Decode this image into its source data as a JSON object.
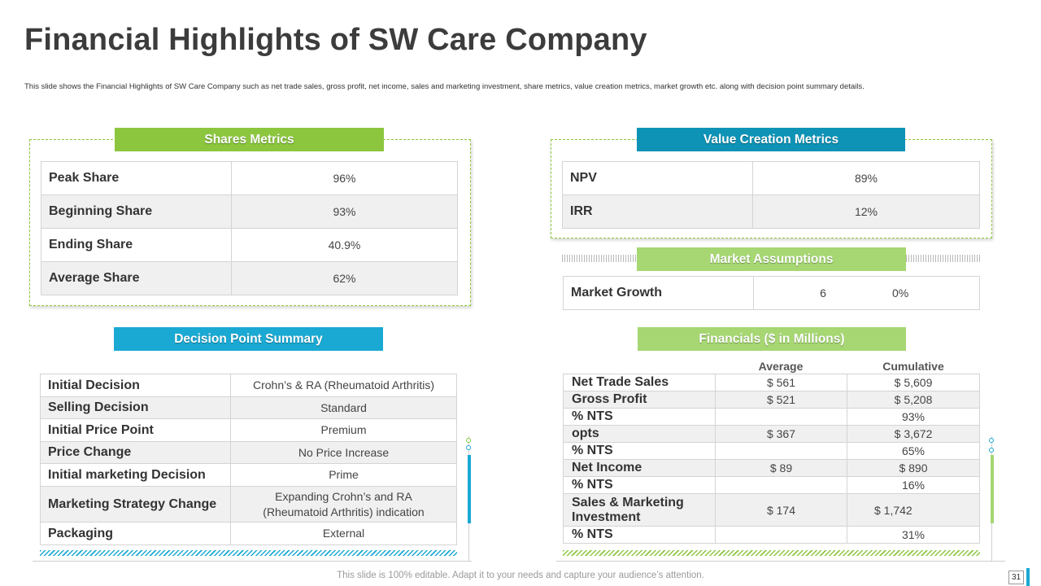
{
  "page": {
    "title": "Financial Highlights of SW Care Company",
    "subtitle": "This slide shows the Financial Highlights of SW Care Company such as net trade sales, gross profit, net income, sales and marketing investment, share metrics, value creation metrics, market growth etc. along with decision point summary details.",
    "footer": "This slide is 100% editable. Adapt it to your needs and capture your audience’s attention.",
    "page_number": "31"
  },
  "colors": {
    "green": "#8cc63f",
    "light_green": "#a6d772",
    "teal": "#0e93b7",
    "cyan": "#1aa9d3"
  },
  "shares_metrics": {
    "heading": "Shares Metrics",
    "rows": [
      {
        "label": "Peak Share",
        "value": "96%"
      },
      {
        "label": "Beginning Share",
        "value": "93%"
      },
      {
        "label": "Ending Share",
        "value": "40.9%"
      },
      {
        "label": "Average Share",
        "value": "62%"
      }
    ]
  },
  "value_creation": {
    "heading": "Value Creation Metrics",
    "rows": [
      {
        "label": "NPV",
        "value": "89%"
      },
      {
        "label": "IRR",
        "value": "12%"
      }
    ]
  },
  "market_assumptions": {
    "heading": "Market Assumptions",
    "label": "Market Growth",
    "value_a": "6",
    "value_b": "0%"
  },
  "decision_summary": {
    "heading": "Decision Point Summary",
    "rows": [
      {
        "label": "Initial Decision",
        "value": "Crohn’s & RA (Rheumatoid Arthritis)"
      },
      {
        "label": "Selling Decision",
        "value": "Standard"
      },
      {
        "label": "Initial Price Point",
        "value": "Premium"
      },
      {
        "label": "Price Change",
        "value": "No Price Increase"
      },
      {
        "label": "Initial marketing Decision",
        "value": "Prime"
      },
      {
        "label": "Marketing Strategy Change",
        "value_line1": "Expanding Crohn’s and RA",
        "value_line2": "(Rheumatoid Arthritis) indication"
      },
      {
        "label": "Packaging",
        "value": "External"
      }
    ]
  },
  "financials": {
    "heading": "Financials ($ in Millions)",
    "col_average": "Average",
    "col_cumulative": "Cumulative",
    "rows": [
      {
        "label": "Net Trade Sales",
        "average": "$ 561",
        "cumulative": "$ 5,609"
      },
      {
        "label": "Gross Profit",
        "average": "$ 521",
        "cumulative": "$ 5,208"
      },
      {
        "label": "% NTS",
        "average": "",
        "cumulative": "93%"
      },
      {
        "label": "opts",
        "average": "$ 367",
        "cumulative": "$ 3,672"
      },
      {
        "label": "% NTS",
        "average": "",
        "cumulative": "65%"
      },
      {
        "label": "Net Income",
        "average": "$ 89",
        "cumulative": "$ 890"
      },
      {
        "label": "% NTS",
        "average": "",
        "cumulative": "16%"
      },
      {
        "label_line1": "Sales & Marketing",
        "label_line2": "Investment",
        "average": "$ 174",
        "cumulative": "$ 1,742"
      },
      {
        "label": "% NTS",
        "average": "",
        "cumulative": "31%"
      }
    ]
  }
}
